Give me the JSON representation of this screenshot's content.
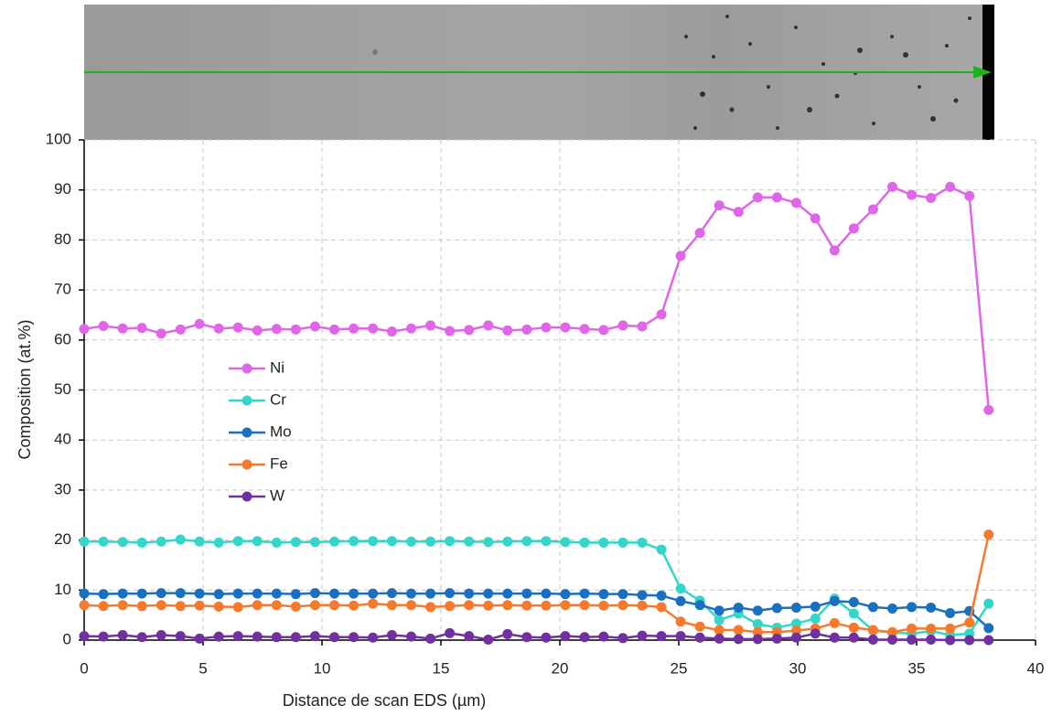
{
  "chart_data": {
    "type": "line",
    "xlabel": "Distance de scan EDS (µm)",
    "ylabel": "Composition (at.%)",
    "xlim": [
      0,
      40
    ],
    "xticks": [
      0,
      5,
      10,
      15,
      20,
      25,
      30,
      35,
      40
    ],
    "ylim": [
      0,
      100
    ],
    "yticks": [
      0,
      10,
      20,
      30,
      40,
      50,
      60,
      70,
      80,
      90,
      100
    ],
    "grid": true,
    "legend": "left",
    "x": [
      0,
      0.81,
      1.62,
      2.43,
      3.24,
      4.05,
      4.85,
      5.66,
      6.47,
      7.28,
      8.09,
      8.9,
      9.71,
      10.52,
      11.33,
      12.14,
      12.94,
      13.75,
      14.56,
      15.37,
      16.18,
      16.99,
      17.8,
      18.61,
      19.42,
      20.23,
      21.04,
      21.84,
      22.65,
      23.46,
      24.27,
      25.08,
      25.89,
      26.7,
      27.51,
      28.32,
      29.13,
      29.94,
      30.74,
      31.55,
      32.36,
      33.17,
      33.98,
      34.79,
      35.6,
      36.41,
      37.22,
      38.03
    ],
    "series": [
      {
        "name": "Ni",
        "color": "#e066e8",
        "values": [
          62.2,
          62.8,
          62.3,
          62.4,
          61.3,
          62.1,
          63.2,
          62.3,
          62.5,
          61.9,
          62.2,
          62.1,
          62.7,
          62.1,
          62.3,
          62.3,
          61.7,
          62.3,
          62.9,
          61.8,
          62.0,
          62.9,
          61.9,
          62.1,
          62.5,
          62.5,
          62.2,
          62.0,
          62.9,
          62.7,
          65.1,
          76.8,
          81.4,
          86.9,
          85.6,
          88.5,
          88.5,
          87.4,
          84.3,
          77.9,
          82.3,
          86.1,
          90.6,
          89.0,
          88.4,
          90.6,
          88.8,
          46.0
        ]
      },
      {
        "name": "Cr",
        "color": "#33d6c8",
        "values": [
          19.7,
          19.7,
          19.6,
          19.5,
          19.7,
          20.1,
          19.7,
          19.5,
          19.8,
          19.8,
          19.5,
          19.6,
          19.6,
          19.7,
          19.8,
          19.8,
          19.8,
          19.7,
          19.7,
          19.8,
          19.7,
          19.6,
          19.7,
          19.8,
          19.8,
          19.6,
          19.5,
          19.5,
          19.5,
          19.5,
          18.1,
          10.3,
          7.9,
          4.0,
          5.3,
          3.2,
          2.5,
          3.3,
          4.3,
          8.3,
          5.3,
          1.9,
          1.5,
          1.3,
          1.8,
          1.0,
          1.3,
          7.3
        ]
      },
      {
        "name": "Mo",
        "color": "#1a6fbf",
        "values": [
          9.3,
          9.2,
          9.3,
          9.3,
          9.4,
          9.4,
          9.3,
          9.2,
          9.3,
          9.3,
          9.3,
          9.2,
          9.4,
          9.3,
          9.3,
          9.3,
          9.4,
          9.3,
          9.3,
          9.4,
          9.3,
          9.3,
          9.3,
          9.3,
          9.3,
          9.2,
          9.3,
          9.2,
          9.2,
          9.0,
          8.9,
          7.8,
          7.0,
          5.9,
          6.5,
          5.9,
          6.4,
          6.5,
          6.7,
          7.8,
          7.6,
          6.6,
          6.3,
          6.6,
          6.5,
          5.4,
          5.8,
          2.4
        ]
      },
      {
        "name": "Fe",
        "color": "#f57a2e",
        "values": [
          7.0,
          6.8,
          7.0,
          6.8,
          7.0,
          6.8,
          6.9,
          6.7,
          6.6,
          7.0,
          7.0,
          6.7,
          7.0,
          7.0,
          6.9,
          7.3,
          7.0,
          7.0,
          6.6,
          6.8,
          7.0,
          6.9,
          7.0,
          6.9,
          6.9,
          7.0,
          7.0,
          6.9,
          7.0,
          6.9,
          6.6,
          3.7,
          2.7,
          2.0,
          2.0,
          1.6,
          1.6,
          1.9,
          2.3,
          3.4,
          2.5,
          2.0,
          1.6,
          2.3,
          2.3,
          2.3,
          3.5,
          21.1
        ]
      },
      {
        "name": "W",
        "color": "#7030a0",
        "values": [
          0.8,
          0.7,
          1.0,
          0.6,
          1.0,
          0.8,
          0.3,
          0.7,
          0.8,
          0.7,
          0.6,
          0.6,
          0.8,
          0.6,
          0.6,
          0.5,
          1.0,
          0.7,
          0.3,
          1.4,
          0.8,
          0.1,
          1.2,
          0.6,
          0.5,
          0.8,
          0.6,
          0.7,
          0.4,
          0.9,
          0.8,
          0.8,
          0.5,
          0.3,
          0.2,
          0.2,
          0.3,
          0.5,
          1.3,
          0.5,
          0.5,
          0.1,
          0.1,
          0.1,
          0.1,
          0,
          0,
          0
        ]
      }
    ]
  }
}
